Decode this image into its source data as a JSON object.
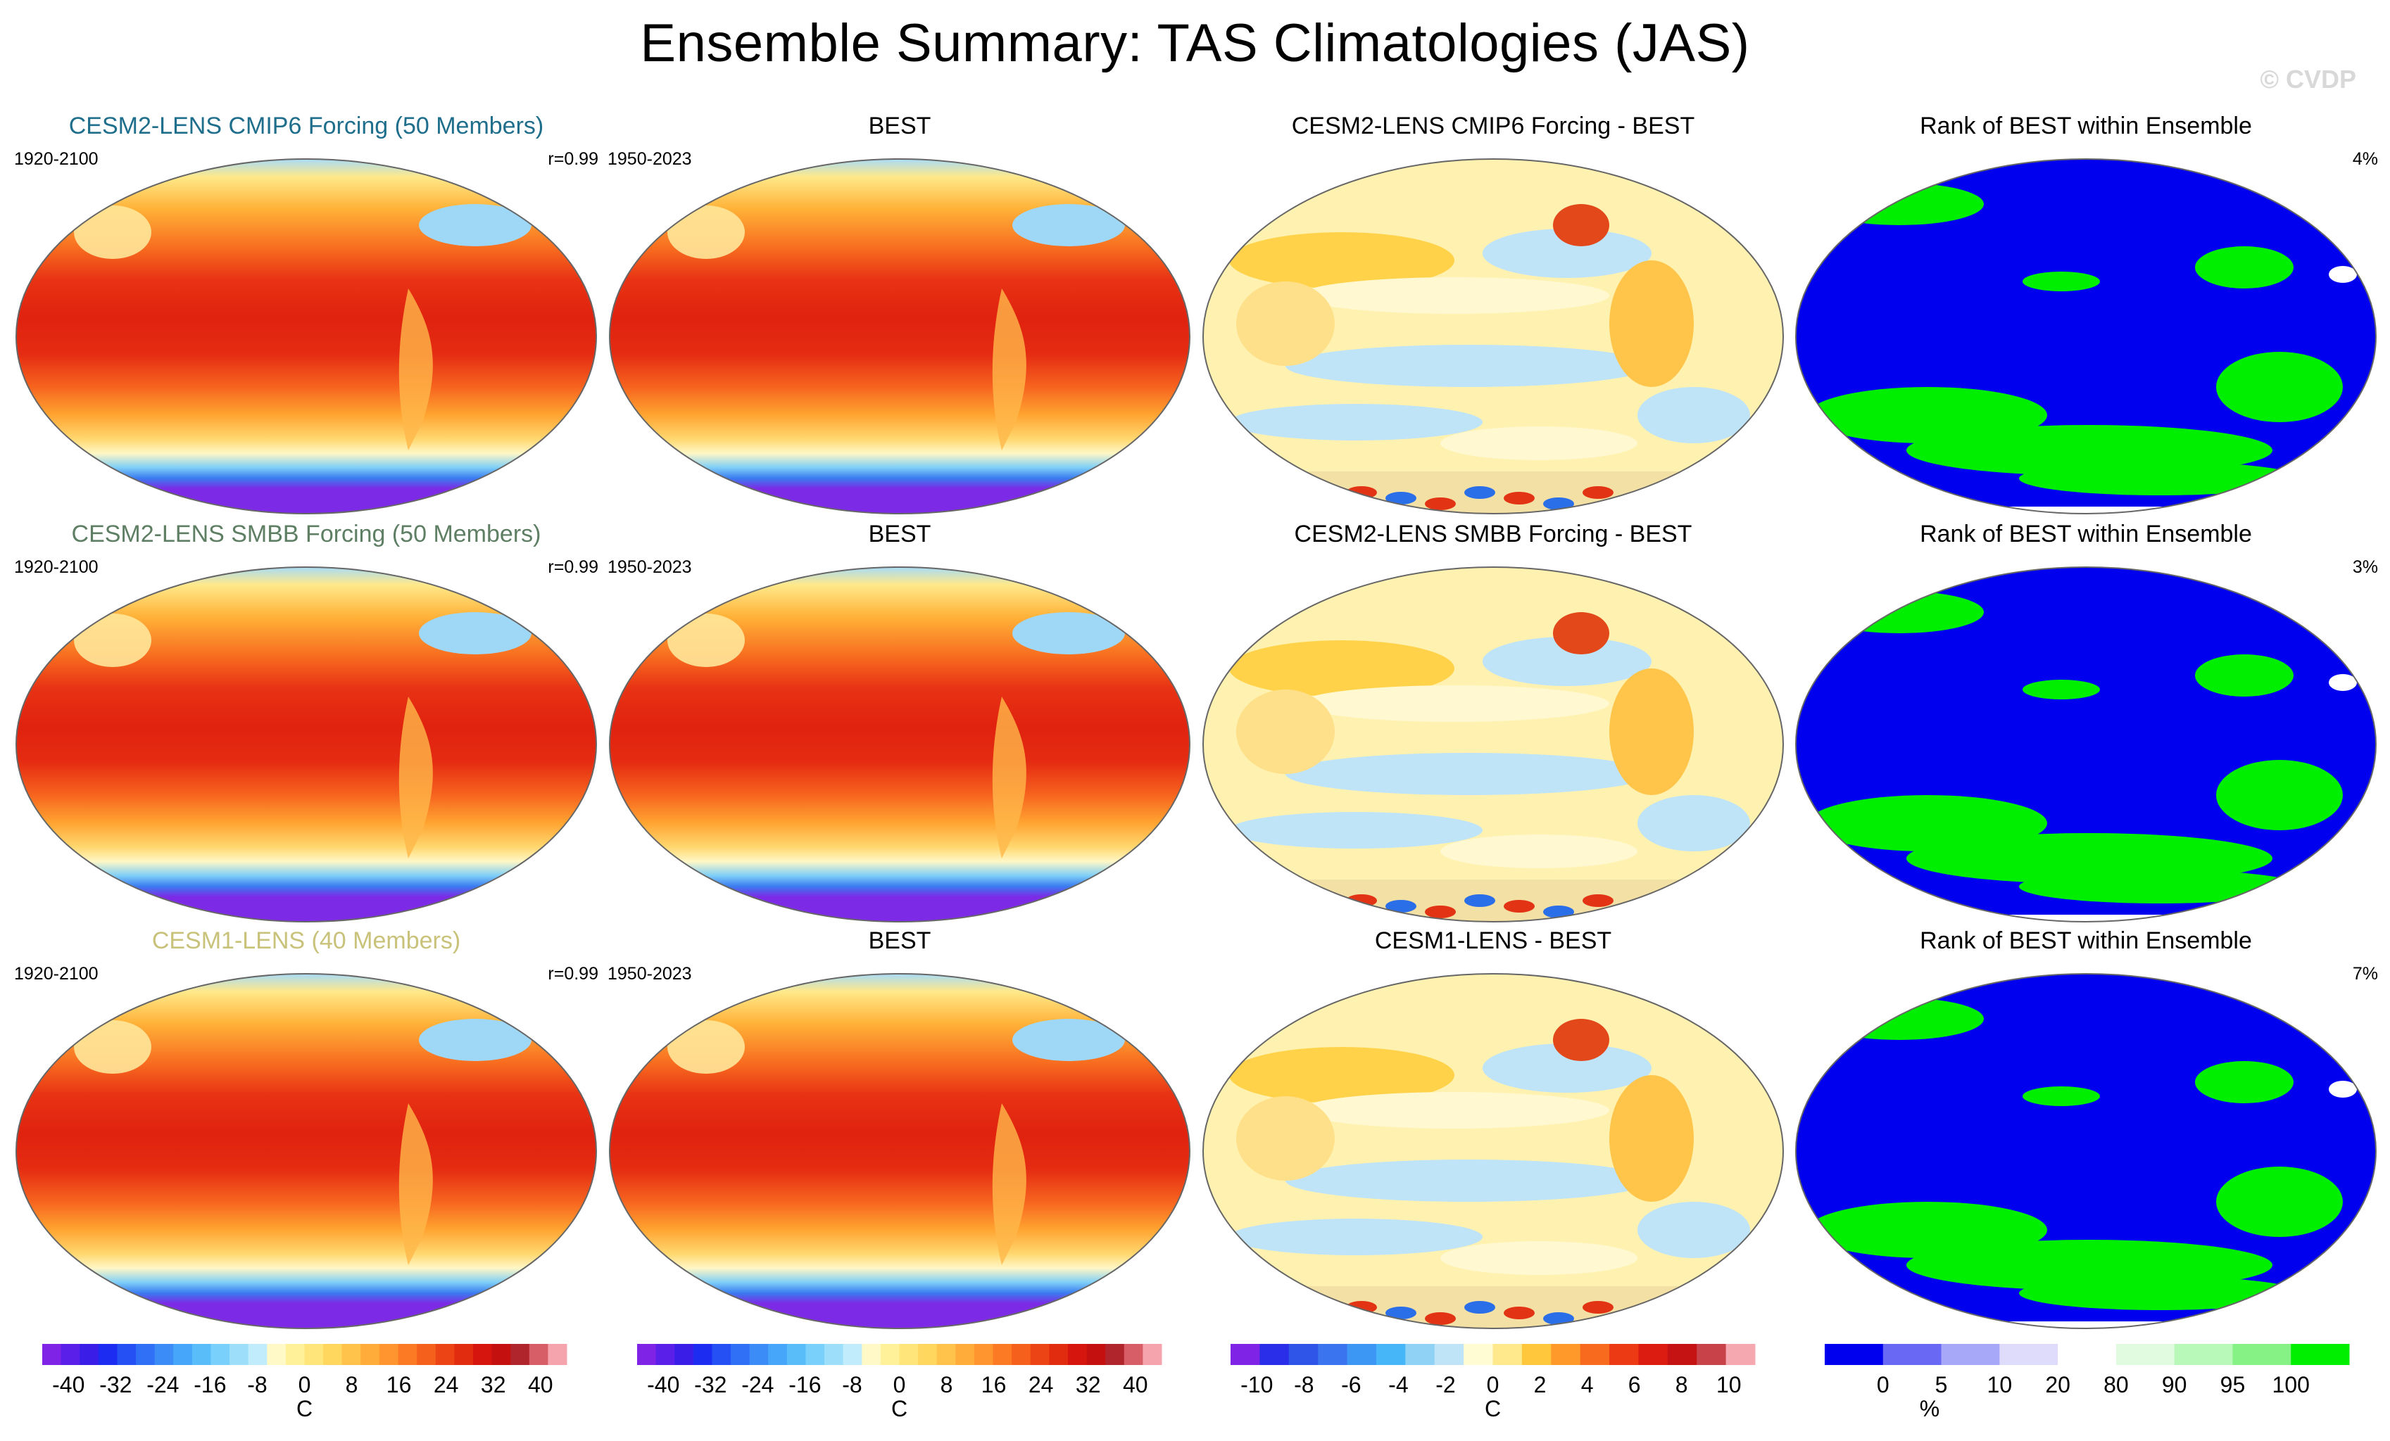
{
  "title": "Ensemble Summary: TAS Climatologies (JAS)",
  "watermark": "© CVDP",
  "colors": {
    "title_cmip6": "#1f6e8c",
    "title_smbb": "#5e7f64",
    "title_cesm1": "#c9c27a",
    "rank_low": "#0000ee",
    "rank_mid": "#ffffff",
    "rank_high": "#00ee00"
  },
  "rows": [
    {
      "panels": [
        {
          "kind": "ensemble",
          "title": "CESM2-LENS CMIP6 Forcing (50 Members)",
          "title_color": "title_cmip6",
          "left": "1920-2100",
          "right": "r=0.99"
        },
        {
          "kind": "obs",
          "title": "BEST",
          "left": "1950-2023",
          "right": ""
        },
        {
          "kind": "diff",
          "title": "CESM2-LENS CMIP6 Forcing - BEST",
          "left": "",
          "right": ""
        },
        {
          "kind": "rank",
          "title": "Rank of BEST within Ensemble",
          "left": "",
          "right": "4%"
        }
      ]
    },
    {
      "panels": [
        {
          "kind": "ensemble",
          "title": "CESM2-LENS SMBB Forcing (50 Members)",
          "title_color": "title_smbb",
          "left": "1920-2100",
          "right": "r=0.99"
        },
        {
          "kind": "obs",
          "title": "BEST",
          "left": "1950-2023",
          "right": ""
        },
        {
          "kind": "diff",
          "title": "CESM2-LENS SMBB Forcing - BEST",
          "left": "",
          "right": ""
        },
        {
          "kind": "rank",
          "title": "Rank of BEST within Ensemble",
          "left": "",
          "right": "3%"
        }
      ]
    },
    {
      "panels": [
        {
          "kind": "ensemble",
          "title": "CESM1-LENS (40 Members)",
          "title_color": "title_cesm1",
          "left": "1920-2100",
          "right": "r=0.99"
        },
        {
          "kind": "obs",
          "title": "BEST",
          "left": "1950-2023",
          "right": ""
        },
        {
          "kind": "diff",
          "title": "CESM1-LENS - BEST",
          "left": "",
          "right": ""
        },
        {
          "kind": "rank",
          "title": "Rank of BEST within Ensemble",
          "left": "",
          "right": "7%"
        }
      ]
    }
  ],
  "colorbars": [
    {
      "name": "clim-model",
      "colors": [
        "#7f23e6",
        "#5a1fe8",
        "#3a1ee8",
        "#1c2cf0",
        "#2450f4",
        "#3070f7",
        "#3c8cf8",
        "#46a6f9",
        "#59bdfa",
        "#78d0fb",
        "#9ddffb",
        "#c1ecfb",
        "#fff9c8",
        "#fff19a",
        "#ffe57a",
        "#ffd65e",
        "#ffc24a",
        "#ffac3a",
        "#ff952e",
        "#fc7a24",
        "#f5601c",
        "#ec4414",
        "#e22c10",
        "#d6160e",
        "#c4100e",
        "#b0252b",
        "#d75e66",
        "#f5a3ac"
      ],
      "ticks": [
        "-40",
        "-32",
        "-24",
        "-16",
        "-8",
        "0",
        "8",
        "16",
        "24",
        "32",
        "40"
      ],
      "unit": "C"
    },
    {
      "name": "clim-obs",
      "colors": [
        "#7f23e6",
        "#5a1fe8",
        "#3a1ee8",
        "#1c2cf0",
        "#2450f4",
        "#3070f7",
        "#3c8cf8",
        "#46a6f9",
        "#59bdfa",
        "#78d0fb",
        "#9ddffb",
        "#c1ecfb",
        "#fff9c8",
        "#fff19a",
        "#ffe57a",
        "#ffd65e",
        "#ffc24a",
        "#ffac3a",
        "#ff952e",
        "#fc7a24",
        "#f5601c",
        "#ec4414",
        "#e22c10",
        "#d6160e",
        "#c4100e",
        "#b0252b",
        "#d75e66",
        "#f5a3ac"
      ],
      "ticks": [
        "-40",
        "-32",
        "-24",
        "-16",
        "-8",
        "0",
        "8",
        "16",
        "24",
        "32",
        "40"
      ],
      "unit": "C"
    },
    {
      "name": "difference",
      "colors": [
        "#7f23e6",
        "#2a2ee8",
        "#2e55e8",
        "#3a74ee",
        "#3c96f3",
        "#46b6f8",
        "#8fd2f6",
        "#bfe3f7",
        "#fffbd2",
        "#ffe98c",
        "#ffc73c",
        "#ff9a2a",
        "#f86a1e",
        "#ec3a14",
        "#dc1c10",
        "#c51212",
        "#c8424a",
        "#f6a8b0"
      ],
      "ticks": [
        "-10",
        "-8",
        "-6",
        "-4",
        "-2",
        "0",
        "2",
        "4",
        "6",
        "8",
        "10"
      ],
      "unit": "C"
    },
    {
      "name": "rank",
      "colors": [
        "#0000ee",
        "#6868f5",
        "#a8a8f8",
        "#dedcfa",
        "#ffffff",
        "#e0fbe0",
        "#b8f8b8",
        "#86f286",
        "#00ee00"
      ],
      "ticks": [
        "0",
        "5",
        "10",
        "20",
        "80",
        "90",
        "95",
        "100"
      ],
      "unit": "%"
    }
  ]
}
